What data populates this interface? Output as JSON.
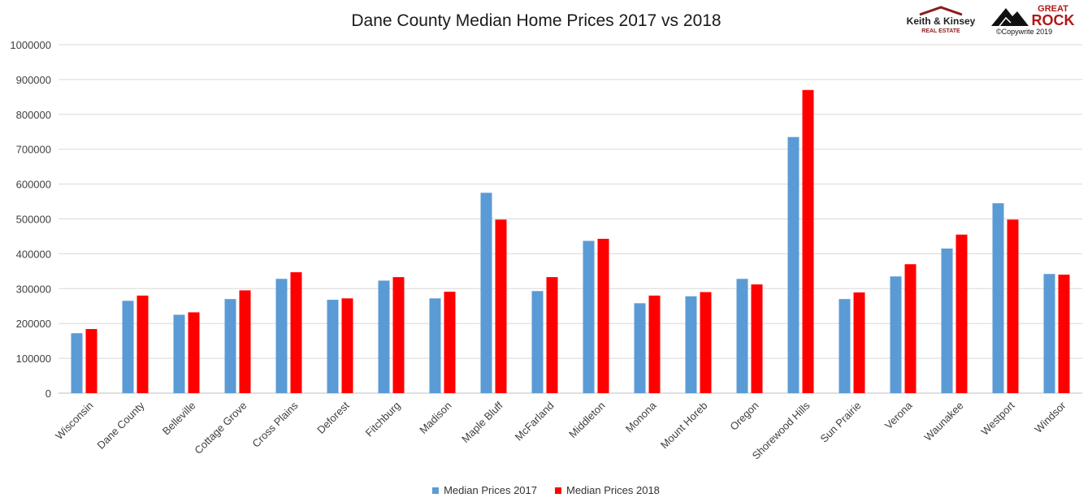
{
  "chart_data": {
    "type": "bar",
    "title": "Dane County Median Home Prices 2017 vs 2018",
    "xlabel": "",
    "ylabel": "",
    "ylim": [
      0,
      1000000
    ],
    "yticks": [
      "0",
      "100000",
      "200000",
      "300000",
      "400000",
      "500000",
      "600000",
      "700000",
      "800000",
      "900000",
      "1000000"
    ],
    "grid": true,
    "legend_position": "bottom",
    "categories": [
      "Wisconsin",
      "Dane County",
      "Belleville",
      "Cottage Grove",
      "Cross Plains",
      "Deforest",
      "Fitchburg",
      "Madison",
      "Maple Bluff",
      "McFarland",
      "Middleton",
      "Monona",
      "Mount Horeb",
      "Oregon",
      "Shorewood Hills",
      "Sun Prairie",
      "Verona",
      "Waunakee",
      "Westport",
      "Windsor"
    ],
    "series": [
      {
        "name": "Median Prices 2017",
        "color": "#5b9bd5",
        "values": [
          172000,
          265000,
          225000,
          270000,
          328000,
          268000,
          323000,
          272000,
          575000,
          293000,
          437000,
          258000,
          278000,
          328000,
          735000,
          270000,
          335000,
          415000,
          545000,
          342000
        ]
      },
      {
        "name": "Median Prices 2018",
        "color": "#ff0000",
        "values": [
          184000,
          280000,
          232000,
          295000,
          347000,
          272000,
          333000,
          291000,
          498000,
          333000,
          443000,
          280000,
          290000,
          312000,
          870000,
          289000,
          370000,
          455000,
          498000,
          340000
        ]
      }
    ]
  },
  "logos": {
    "keith_kinsey": {
      "line1": "Keith & Kinsey",
      "line2": "REAL ESTATE",
      "icon": "house-roof-icon"
    },
    "great_rock": {
      "line1": "GREAT",
      "line2": "ROCK",
      "icon": "mountain-icon"
    },
    "copyright": "©Copywrite 2019"
  }
}
